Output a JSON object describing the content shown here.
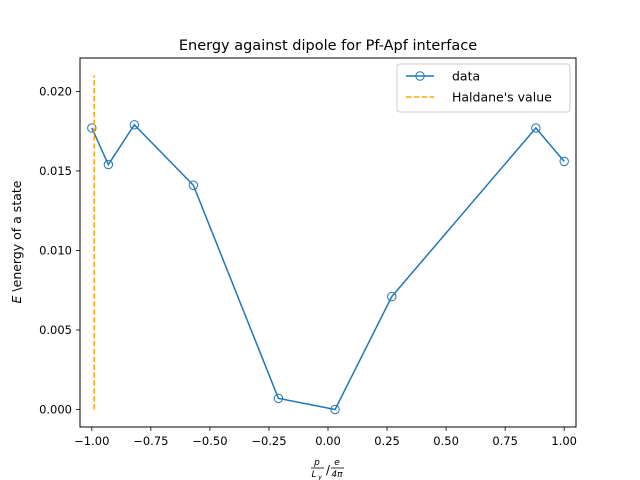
{
  "chart_data": {
    "type": "line",
    "title": "Energy against dipole for Pf-Apf interface",
    "xlabel_tex": {
      "num_p": "p",
      "den_L": "L",
      "den_y": "y",
      "slash": "/",
      "num_e": "e",
      "den_4pi": "4π"
    },
    "ylabel": {
      "italic": "E",
      "rest": " \\energy of a state"
    },
    "xlim": [
      -1.05,
      1.05
    ],
    "ylim": [
      -0.0011,
      0.0221
    ],
    "xticks": [
      -1.0,
      -0.75,
      -0.5,
      -0.25,
      0.0,
      0.25,
      0.5,
      0.75,
      1.0
    ],
    "xtick_labels": [
      "−1.00",
      "−0.75",
      "−0.50",
      "−0.25",
      "0.00",
      "0.25",
      "0.50",
      "0.75",
      "1.00"
    ],
    "yticks": [
      0.0,
      0.005,
      0.01,
      0.015,
      0.02
    ],
    "ytick_labels": [
      "0.000",
      "0.005",
      "0.010",
      "0.015",
      "0.020"
    ],
    "grid": false,
    "legend_position": "top-right",
    "series": [
      {
        "name": "data",
        "style": "solid-with-open-circles",
        "color": "#1f77b4",
        "x": [
          -1.0,
          -0.93,
          -0.82,
          -0.57,
          -0.21,
          0.03,
          0.27,
          0.88,
          1.0
        ],
        "y": [
          0.0177,
          0.0154,
          0.0179,
          0.0141,
          0.0007,
          0.0,
          0.0071,
          0.0177,
          0.0156
        ]
      },
      {
        "name": "Haldane's value",
        "style": "dashed",
        "color": "#ffa500",
        "x": [
          -0.99,
          -0.99
        ],
        "y": [
          0.0,
          0.021
        ]
      }
    ]
  }
}
